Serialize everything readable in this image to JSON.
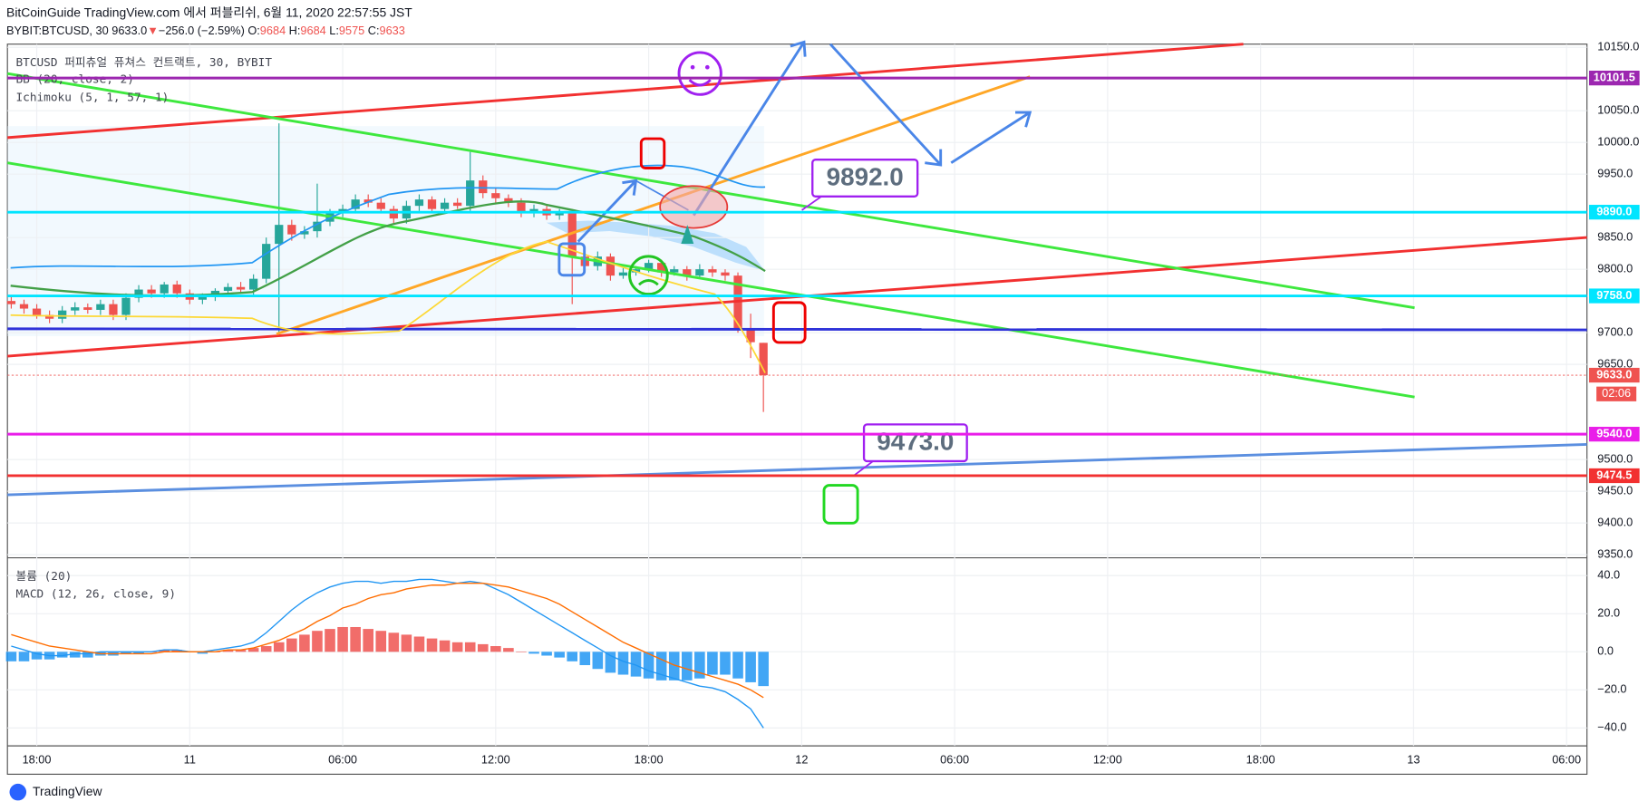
{
  "header": {
    "line1": "BitCoinGuide TradingView.com 에서 퍼블리쉬, 6월 11, 2020 22:57:55 JST",
    "symbol": "BYBIT:BTCUSD, 30 9633.0",
    "arrow": "▼",
    "change": "−256.0 (−2.59%)",
    "o": "O:",
    "h": "H:",
    "l": "L:",
    "c": "C:"
  },
  "legend": {
    "main": "BTCUSD 퍼피츄얼 퓨쳐스 컨트랙트, 30, BYBIT",
    "bb": "BB (20, close, 2)",
    "ichimoku": "Ichimoku (5, 1, 57, 1)",
    "volume": "볼륨 (20)",
    "macd": "MACD (12, 26, close, 9)"
  },
  "annotations": [
    {
      "label": "9892.0"
    },
    {
      "label": "9473.0"
    }
  ],
  "countdown": "02:06",
  "footer": "TradingView",
  "chart_data": {
    "type": "candlestick",
    "candles": {
      "x": [
        17,
        17.5,
        18,
        18.5,
        19,
        19.5,
        20,
        20.5,
        21,
        21.5,
        22,
        22.5,
        23,
        23.5,
        24,
        24.5,
        25,
        25.5,
        26,
        26.5,
        27,
        27.5,
        28,
        28.5,
        29,
        29.5,
        30,
        30.5,
        31,
        31.5,
        32,
        32.5,
        33,
        33.5,
        34,
        34.5,
        35,
        35.5,
        36,
        36.5,
        37,
        37.5,
        38,
        38.5,
        39,
        39.5,
        40,
        40.5,
        41,
        41.5,
        42,
        42.5,
        43,
        43.5,
        44,
        44.5,
        45,
        45.5,
        46,
        46.5
      ],
      "open": [
        9750,
        9745,
        9738,
        9728,
        9722,
        9735,
        9740,
        9736,
        9745,
        9728,
        9755,
        9768,
        9762,
        9776,
        9762,
        9752,
        9756,
        9766,
        9772,
        9768,
        9785,
        9840,
        9870,
        9855,
        9860,
        9875,
        9890,
        9895,
        9910,
        9905,
        9895,
        9880,
        9900,
        9910,
        9895,
        9905,
        9900,
        9940,
        9920,
        9912,
        9905,
        9890,
        9895,
        9885,
        9890,
        9820,
        9805,
        9820,
        9790,
        9795,
        9800,
        9810,
        9795,
        9800,
        9790,
        9800,
        9795,
        9790,
        9705,
        9684
      ],
      "high": [
        9758,
        9752,
        9745,
        9735,
        9742,
        9748,
        9746,
        9752,
        9752,
        9762,
        9775,
        9775,
        9780,
        9782,
        9768,
        9762,
        9770,
        9778,
        9780,
        9792,
        9850,
        10030,
        9878,
        9868,
        9935,
        9895,
        9902,
        9918,
        9918,
        9912,
        9900,
        9908,
        9918,
        9915,
        9912,
        9912,
        9985,
        9948,
        9928,
        9918,
        9912,
        9902,
        9900,
        9895,
        9895,
        9830,
        9828,
        9825,
        9802,
        9805,
        9815,
        9815,
        9805,
        9805,
        9808,
        9805,
        9800,
        9795,
        9730,
        9684
      ],
      "low": [
        9738,
        9730,
        9722,
        9715,
        9715,
        9728,
        9730,
        9728,
        9720,
        9720,
        9748,
        9755,
        9755,
        9755,
        9745,
        9745,
        9750,
        9760,
        9762,
        9760,
        9778,
        9700,
        9845,
        9848,
        9850,
        9868,
        9882,
        9888,
        9898,
        9888,
        9872,
        9872,
        9892,
        9888,
        9888,
        9895,
        9892,
        9912,
        9905,
        9898,
        9882,
        9882,
        9878,
        9878,
        9745,
        9795,
        9798,
        9782,
        9785,
        9790,
        9795,
        9788,
        9790,
        9782,
        9785,
        9788,
        9782,
        9700,
        9660,
        9575
      ],
      "close": [
        9745,
        9738,
        9728,
        9722,
        9735,
        9740,
        9736,
        9745,
        9728,
        9755,
        9768,
        9762,
        9776,
        9762,
        9752,
        9756,
        9766,
        9772,
        9768,
        9785,
        9840,
        9870,
        9855,
        9860,
        9875,
        9890,
        9895,
        9910,
        9905,
        9895,
        9880,
        9900,
        9910,
        9895,
        9905,
        9900,
        9940,
        9920,
        9912,
        9905,
        9890,
        9895,
        9885,
        9890,
        9820,
        9805,
        9820,
        9790,
        9795,
        9800,
        9810,
        9795,
        9800,
        9790,
        9800,
        9795,
        9790,
        9705,
        9685,
        9633
      ],
      "up_color": "#26a69a",
      "down_color": "#ef5350"
    },
    "xlim": [
      16.85,
      78.8
    ],
    "xticks": [
      {
        "value": 18,
        "label": "18:00"
      },
      {
        "value": 24,
        "label": "11"
      },
      {
        "value": 30,
        "label": "06:00"
      },
      {
        "value": 36,
        "label": "12:00"
      },
      {
        "value": 42,
        "label": "18:00"
      },
      {
        "value": 48,
        "label": "12"
      },
      {
        "value": 54,
        "label": "06:00"
      },
      {
        "value": 60,
        "label": "12:00"
      },
      {
        "value": 66,
        "label": "18:00"
      },
      {
        "value": 72,
        "label": "13"
      },
      {
        "value": 78,
        "label": "06:00"
      }
    ],
    "ylim": [
      9350,
      10150
    ],
    "yticks": [
      {
        "value": 10150,
        "label": "10150.0"
      },
      {
        "value": 10050,
        "label": "10050.0"
      },
      {
        "value": 10000,
        "label": "10000.0"
      },
      {
        "value": 9950,
        "label": "9950.0"
      },
      {
        "value": 9850,
        "label": "9850.0"
      },
      {
        "value": 9800,
        "label": "9800.0"
      },
      {
        "value": 9700,
        "label": "9700.0"
      },
      {
        "value": 9650,
        "label": "9650.0"
      },
      {
        "value": 9500,
        "label": "9500.0"
      },
      {
        "value": 9450,
        "label": "9450.0"
      },
      {
        "value": 9400,
        "label": "9400.0"
      },
      {
        "value": 9350,
        "label": "9350.0"
      }
    ],
    "price_lines": [
      {
        "value": 10101.5,
        "label": "10101.5",
        "color": "#9c27b0"
      },
      {
        "value": 9890,
        "label": "9890.0",
        "color": "#00e5ff"
      },
      {
        "value": 9758,
        "label": "9758.0",
        "color": "#00e5ff"
      },
      {
        "value": 9633,
        "label": "9633.0",
        "color": "#ef5350"
      },
      {
        "value": 9540,
        "label": "9540.0",
        "color": "#e91ee9"
      },
      {
        "value": 9474.5,
        "label": "9474.5",
        "color": "#f23030"
      }
    ],
    "grid": true,
    "macd": {
      "ylim": [
        -49.4,
        48.8
      ],
      "yticks": [
        {
          "value": 40,
          "label": "40.0"
        },
        {
          "value": 20,
          "label": "20.0"
        },
        {
          "value": 0,
          "label": "0.0"
        },
        {
          "value": -20,
          "label": "−20.0"
        },
        {
          "value": -40,
          "label": "−40.0"
        }
      ],
      "histogram": [
        -5,
        -5,
        -4,
        -4,
        -3,
        -3,
        -3,
        -2,
        -2,
        -1,
        -1,
        0,
        1,
        1,
        0,
        -1,
        0,
        1,
        1,
        2,
        3,
        5,
        7,
        9,
        11,
        12,
        13,
        13,
        12,
        11,
        10,
        9,
        8,
        7,
        6,
        5,
        5,
        4,
        3,
        2,
        0,
        -1,
        -2,
        -3,
        -5,
        -7,
        -9,
        -11,
        -12,
        -13,
        -14,
        -15,
        -15,
        -15,
        -14,
        -12,
        -12,
        -14,
        -16,
        -18
      ],
      "macd": [
        3,
        1,
        -1,
        -2,
        -2,
        -1,
        -1,
        0,
        0,
        0,
        0,
        0,
        1,
        1,
        0,
        0,
        1,
        2,
        3,
        5,
        10,
        16,
        22,
        27,
        31,
        34,
        36,
        37,
        37,
        36,
        37,
        37,
        38,
        38,
        37,
        36,
        37,
        36,
        33,
        30,
        26,
        22,
        18,
        14,
        10,
        6,
        2,
        -2,
        -5,
        -7,
        -10,
        -12,
        -14,
        -16,
        -18,
        -19,
        -21,
        -25,
        -30,
        -40
      ],
      "signal": [
        9,
        7,
        5,
        3,
        2,
        1,
        0,
        -1,
        -1,
        -1,
        -1,
        -1,
        0,
        0,
        0,
        0,
        0,
        1,
        1,
        2,
        4,
        6,
        9,
        12,
        16,
        19,
        23,
        25,
        28,
        30,
        31,
        33,
        34,
        35,
        35,
        36,
        36,
        36,
        35,
        34,
        32,
        30,
        28,
        25,
        21,
        17,
        13,
        9,
        5,
        2,
        -1,
        -4,
        -7,
        -9,
        -11,
        -13,
        -15,
        -17,
        -20,
        -24
      ],
      "pos_color": "#ef5350",
      "neg_color": "#2196f3",
      "macd_color": "#2196f3",
      "signal_color": "#ff6d00"
    }
  }
}
